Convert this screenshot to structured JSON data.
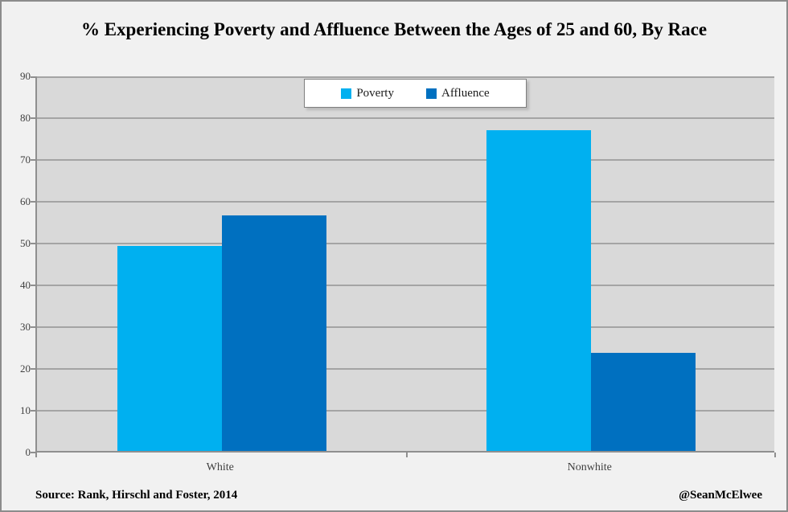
{
  "chart_data": {
    "type": "bar",
    "title": "% Experiencing Poverty and Affluence Between the Ages of 25 and 60, By Race",
    "categories": [
      "White",
      "Nonwhite"
    ],
    "series": [
      {
        "name": "Poverty",
        "color": "#00b0f0",
        "values": [
          49.0,
          76.7
        ]
      },
      {
        "name": "Affluence",
        "color": "#0070c0",
        "values": [
          56.4,
          23.5
        ]
      }
    ],
    "xlabel": "",
    "ylabel": "",
    "ylim": [
      0,
      90
    ],
    "ytick_step": 10,
    "ytick_labels": [
      "0",
      "10",
      "20",
      "30",
      "40",
      "50",
      "60",
      "70",
      "80",
      "90"
    ],
    "grid": "horizontal",
    "legend_position": "top-center"
  },
  "footer": {
    "source": "Source: Rank, Hirschl and Foster, 2014",
    "attribution": "@SeanMcElwee"
  },
  "colors": {
    "background": "#f1f1f1",
    "plot_background": "#d9d9d9",
    "gridline": "#a4a4a4",
    "axis": "#8f8f8f",
    "legend_border": "#7f7f7f"
  }
}
